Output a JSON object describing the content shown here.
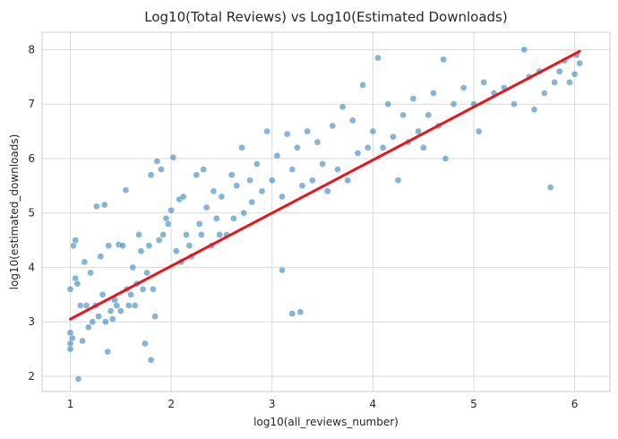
{
  "chart_data": {
    "type": "scatter",
    "title": "Log10(Total Reviews) vs Log10(Estimated Downloads)",
    "xlabel": "log10(all_reviews_number)",
    "ylabel": "log10(estimated_downloads)",
    "xlim": [
      0.72,
      6.35
    ],
    "ylim": [
      1.72,
      8.32
    ],
    "xticks": [
      1,
      2,
      3,
      4,
      5,
      6
    ],
    "yticks": [
      2,
      3,
      4,
      5,
      6,
      7,
      8
    ],
    "grid": true,
    "legend": "none",
    "colors": {
      "points": "#1f77b4",
      "fit_line": "#e8141c",
      "point_edge": "#ffffff"
    },
    "series": [
      {
        "type": "scatter",
        "points": [
          [
            1.0,
            3.6
          ],
          [
            1.0,
            2.8
          ],
          [
            1.0,
            2.6
          ],
          [
            1.0,
            2.5
          ],
          [
            1.02,
            2.7
          ],
          [
            1.03,
            4.4
          ],
          [
            1.05,
            4.5
          ],
          [
            1.05,
            3.8
          ],
          [
            1.07,
            3.7
          ],
          [
            1.08,
            1.95
          ],
          [
            1.1,
            3.3
          ],
          [
            1.12,
            2.65
          ],
          [
            1.14,
            4.1
          ],
          [
            1.16,
            3.3
          ],
          [
            1.18,
            2.9
          ],
          [
            1.2,
            3.9
          ],
          [
            1.22,
            3.0
          ],
          [
            1.25,
            3.3
          ],
          [
            1.26,
            5.12
          ],
          [
            1.28,
            3.1
          ],
          [
            1.3,
            4.2
          ],
          [
            1.32,
            3.5
          ],
          [
            1.34,
            5.15
          ],
          [
            1.35,
            3.0
          ],
          [
            1.37,
            2.45
          ],
          [
            1.38,
            4.4
          ],
          [
            1.4,
            3.2
          ],
          [
            1.42,
            3.05
          ],
          [
            1.44,
            3.4
          ],
          [
            1.46,
            3.3
          ],
          [
            1.48,
            4.42
          ],
          [
            1.5,
            3.2
          ],
          [
            1.52,
            4.4
          ],
          [
            1.55,
            5.42
          ],
          [
            1.56,
            3.6
          ],
          [
            1.58,
            3.3
          ],
          [
            1.6,
            3.5
          ],
          [
            1.62,
            4.0
          ],
          [
            1.64,
            3.3
          ],
          [
            1.66,
            3.7
          ],
          [
            1.68,
            4.6
          ],
          [
            1.7,
            4.3
          ],
          [
            1.72,
            3.6
          ],
          [
            1.74,
            2.6
          ],
          [
            1.76,
            3.9
          ],
          [
            1.78,
            4.4
          ],
          [
            1.8,
            2.3
          ],
          [
            1.8,
            5.7
          ],
          [
            1.82,
            3.6
          ],
          [
            1.84,
            3.1
          ],
          [
            1.86,
            5.95
          ],
          [
            1.88,
            4.5
          ],
          [
            1.9,
            5.8
          ],
          [
            1.92,
            4.6
          ],
          [
            1.95,
            4.9
          ],
          [
            1.97,
            4.8
          ],
          [
            2.0,
            5.05
          ],
          [
            2.02,
            6.02
          ],
          [
            2.05,
            4.3
          ],
          [
            2.08,
            5.25
          ],
          [
            2.1,
            4.1
          ],
          [
            2.12,
            5.3
          ],
          [
            2.15,
            4.6
          ],
          [
            2.18,
            4.4
          ],
          [
            2.2,
            4.2
          ],
          [
            2.25,
            5.7
          ],
          [
            2.28,
            4.8
          ],
          [
            2.3,
            4.6
          ],
          [
            2.32,
            5.8
          ],
          [
            2.35,
            5.1
          ],
          [
            2.4,
            4.4
          ],
          [
            2.42,
            5.4
          ],
          [
            2.45,
            4.9
          ],
          [
            2.48,
            4.6
          ],
          [
            2.5,
            5.3
          ],
          [
            2.55,
            4.6
          ],
          [
            2.6,
            5.7
          ],
          [
            2.62,
            4.9
          ],
          [
            2.65,
            5.5
          ],
          [
            2.7,
            6.2
          ],
          [
            2.72,
            5.0
          ],
          [
            2.78,
            5.6
          ],
          [
            2.8,
            5.2
          ],
          [
            2.85,
            5.9
          ],
          [
            2.9,
            5.4
          ],
          [
            2.95,
            6.5
          ],
          [
            3.0,
            5.6
          ],
          [
            3.05,
            6.05
          ],
          [
            3.1,
            3.95
          ],
          [
            3.1,
            5.3
          ],
          [
            3.15,
            6.45
          ],
          [
            3.2,
            3.15
          ],
          [
            3.2,
            5.8
          ],
          [
            3.25,
            6.2
          ],
          [
            3.28,
            3.18
          ],
          [
            3.3,
            5.5
          ],
          [
            3.35,
            6.5
          ],
          [
            3.4,
            5.6
          ],
          [
            3.45,
            6.3
          ],
          [
            3.5,
            5.9
          ],
          [
            3.55,
            5.4
          ],
          [
            3.6,
            6.6
          ],
          [
            3.65,
            5.8
          ],
          [
            3.7,
            6.95
          ],
          [
            3.75,
            5.6
          ],
          [
            3.8,
            6.7
          ],
          [
            3.85,
            6.1
          ],
          [
            3.9,
            7.35
          ],
          [
            3.95,
            6.2
          ],
          [
            4.0,
            6.5
          ],
          [
            4.05,
            7.85
          ],
          [
            4.1,
            6.2
          ],
          [
            4.15,
            7.0
          ],
          [
            4.2,
            6.4
          ],
          [
            4.25,
            5.6
          ],
          [
            4.3,
            6.8
          ],
          [
            4.35,
            6.3
          ],
          [
            4.4,
            7.1
          ],
          [
            4.45,
            6.5
          ],
          [
            4.5,
            6.2
          ],
          [
            4.55,
            6.8
          ],
          [
            4.6,
            7.2
          ],
          [
            4.65,
            6.6
          ],
          [
            4.7,
            7.82
          ],
          [
            4.72,
            6.0
          ],
          [
            4.8,
            7.0
          ],
          [
            4.9,
            7.3
          ],
          [
            5.0,
            7.0
          ],
          [
            5.05,
            6.5
          ],
          [
            5.1,
            7.4
          ],
          [
            5.2,
            7.2
          ],
          [
            5.3,
            7.3
          ],
          [
            5.4,
            7.0
          ],
          [
            5.5,
            8.0
          ],
          [
            5.55,
            7.5
          ],
          [
            5.6,
            6.9
          ],
          [
            5.65,
            7.6
          ],
          [
            5.7,
            7.2
          ],
          [
            5.76,
            5.47
          ],
          [
            5.8,
            7.4
          ],
          [
            5.85,
            7.6
          ],
          [
            5.9,
            7.8
          ],
          [
            5.95,
            7.4
          ],
          [
            6.0,
            7.55
          ],
          [
            6.02,
            7.9
          ],
          [
            6.05,
            7.75
          ]
        ]
      },
      {
        "type": "line",
        "x": [
          1.0,
          6.05
        ],
        "y": [
          3.05,
          7.97
        ]
      }
    ]
  }
}
